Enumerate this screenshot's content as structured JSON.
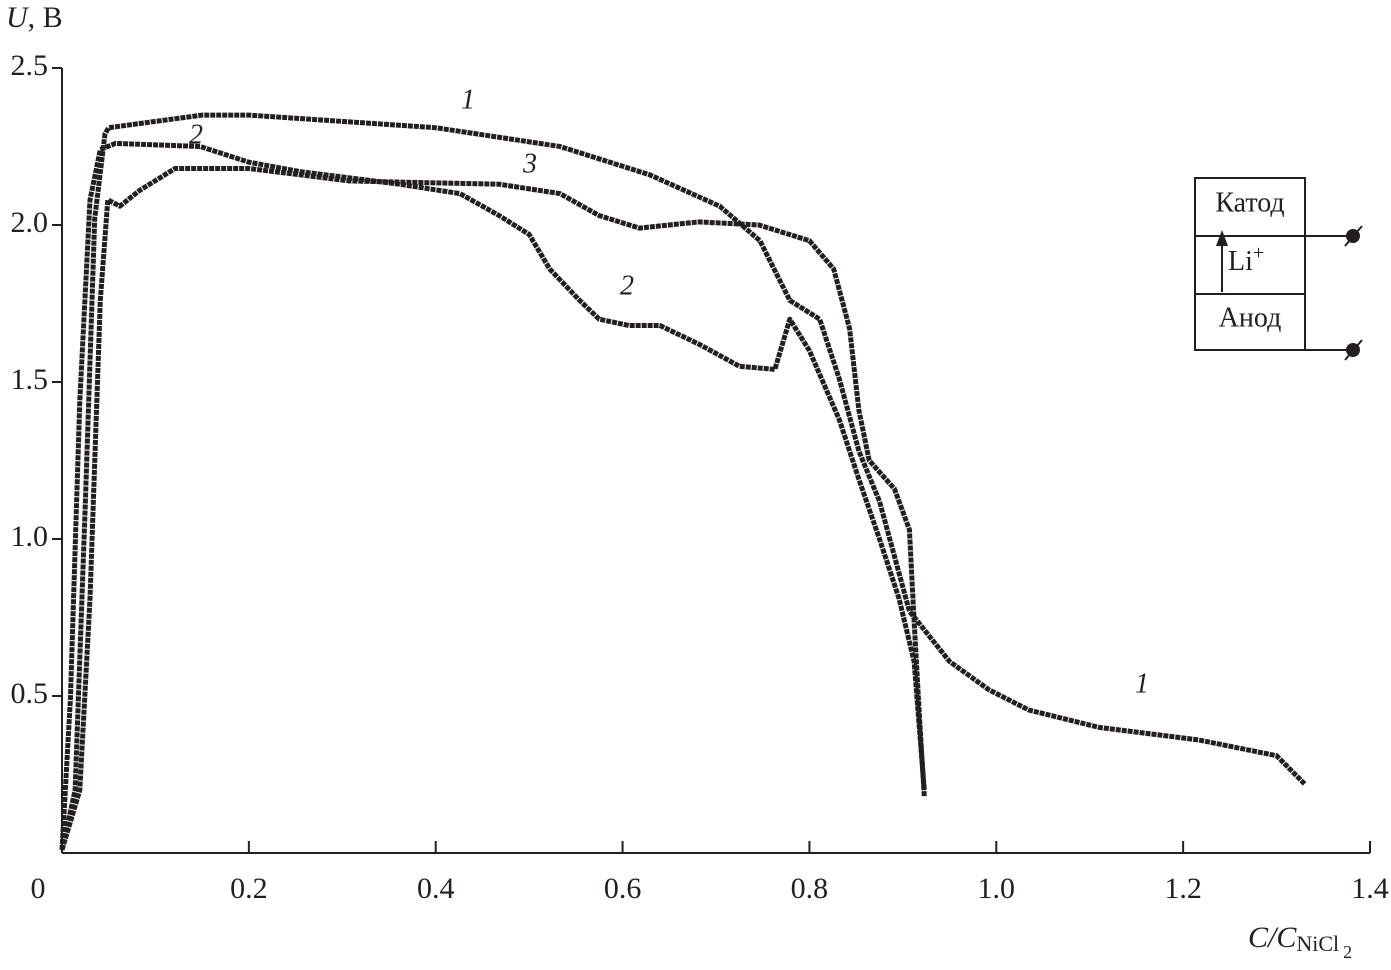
{
  "chart_data": {
    "type": "line",
    "ylabel": {
      "symbol": "U",
      "unit": ", В"
    },
    "xlabel": {
      "main": "C/C",
      "sub": "NiCl",
      "sub2": "2"
    },
    "xlim": [
      0,
      1.4
    ],
    "ylim": [
      0,
      2.5
    ],
    "xticks": [
      0,
      0.2,
      0.4,
      0.6,
      0.8,
      {
        "value": 1.0,
        "label": "1.0"
      },
      1.2,
      1.4
    ],
    "yticks": [
      0.5,
      {
        "value": 1.0,
        "label": "1.0"
      },
      1.5,
      {
        "value": 2.0,
        "label": "2.0"
      },
      2.5
    ],
    "grid": false,
    "series": [
      {
        "name": "1",
        "color": "#231f20",
        "x": [
          0.0,
          0.014,
          0.025,
          0.035,
          0.046,
          0.05,
          0.1,
          0.15,
          0.2,
          0.3,
          0.4,
          0.533,
          0.629,
          0.704,
          0.747,
          0.779,
          0.811,
          0.832,
          0.853,
          0.875,
          0.907,
          0.95,
          0.992,
          1.035,
          1.11,
          1.217,
          1.3,
          1.33
        ],
        "values": [
          0.01,
          0.2,
          1.12,
          2.02,
          2.29,
          2.31,
          2.33,
          2.35,
          2.35,
          2.33,
          2.31,
          2.25,
          2.16,
          2.06,
          1.95,
          1.76,
          1.7,
          1.51,
          1.28,
          1.12,
          0.77,
          0.61,
          0.52,
          0.455,
          0.4,
          0.36,
          0.31,
          0.22
        ]
      },
      {
        "name": "2",
        "color": "#231f20",
        "x": [
          0.0,
          0.009,
          0.019,
          0.03,
          0.041,
          0.057,
          0.148,
          0.2,
          0.255,
          0.361,
          0.426,
          0.468,
          0.5,
          0.522,
          0.554,
          0.575,
          0.607,
          0.64,
          0.682,
          0.725,
          0.763,
          0.779,
          0.8,
          0.832,
          0.853,
          0.875,
          0.896,
          0.912,
          0.923
        ],
        "values": [
          0.01,
          0.49,
          1.44,
          2.08,
          2.24,
          2.26,
          2.25,
          2.2,
          2.17,
          2.13,
          2.1,
          2.03,
          1.97,
          1.86,
          1.76,
          1.7,
          1.68,
          1.68,
          1.62,
          1.55,
          1.54,
          1.7,
          1.6,
          1.38,
          1.19,
          1.0,
          0.81,
          0.61,
          0.2
        ]
      },
      {
        "name": "3",
        "color": "#231f20",
        "x": [
          0.0,
          0.019,
          0.03,
          0.041,
          0.049,
          0.062,
          0.083,
          0.121,
          0.2,
          0.308,
          0.468,
          0.533,
          0.575,
          0.618,
          0.682,
          0.746,
          0.8,
          0.826,
          0.843,
          0.853,
          0.864,
          0.891,
          0.907,
          0.912,
          0.918,
          0.923
        ],
        "values": [
          0.01,
          0.2,
          0.81,
          1.76,
          2.08,
          2.06,
          2.11,
          2.18,
          2.18,
          2.14,
          2.13,
          2.1,
          2.03,
          1.99,
          2.01,
          2.0,
          1.95,
          1.86,
          1.67,
          1.41,
          1.25,
          1.16,
          1.03,
          0.74,
          0.42,
          0.18
        ]
      }
    ],
    "inset": {
      "cathode": "Катод",
      "ion": "Li",
      "ion_charge": "+",
      "anode": "Анод"
    }
  }
}
